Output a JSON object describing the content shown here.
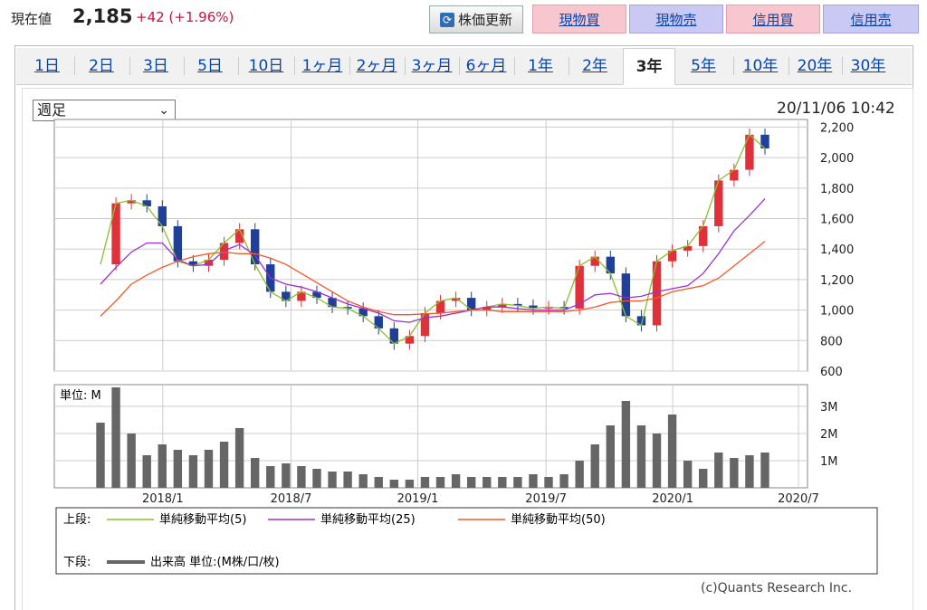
{
  "header": {
    "price_label": "現在値",
    "price_value": "2,185",
    "price_change": "+42 (+1.96%)",
    "refresh_label": "株価更新",
    "trade_buttons": [
      "現物買",
      "現物売",
      "信用買",
      "信用売"
    ]
  },
  "tabs": [
    "1日",
    "2日",
    "3日",
    "5日",
    "10日",
    "1ヶ月",
    "2ヶ月",
    "3ヶ月",
    "6ヶ月",
    "1年",
    "2年",
    "3年",
    "5年",
    "10年",
    "20年",
    "30年"
  ],
  "active_tab": "3年",
  "period_select": "週足",
  "timestamp": "20/11/06 10:42",
  "chart_data": {
    "type": "line",
    "price_axis_ticks": [
      "2,200",
      "2,000",
      "1,800",
      "1,600",
      "1,400",
      "1,200",
      "1,000",
      "800",
      "600"
    ],
    "volume_axis_ticks": [
      "3M",
      "2M",
      "1M"
    ],
    "volume_unit_label": "単位: M",
    "x_tick_labels": [
      "2018/1",
      "2018/7",
      "2019/1",
      "2019/7",
      "2020/1",
      "2020/7"
    ],
    "price_range": [
      600,
      2250
    ],
    "volume_range": [
      0,
      3.8
    ],
    "grid": true,
    "series": [
      {
        "name": "単純移動平均(5)",
        "color": "#8bbf2a",
        "values": [
          1300,
          1700,
          1720,
          1680,
          1550,
          1320,
          1290,
          1330,
          1440,
          1530,
          1300,
          1120,
          1060,
          1120,
          1080,
          1020,
          1010,
          960,
          880,
          780,
          830,
          980,
          1060,
          1080,
          1000,
          1020,
          1040,
          1030,
          1010,
          1020,
          1010,
          1290,
          1350,
          1240,
          960,
          900,
          1320,
          1390,
          1420,
          1550,
          1850,
          1920,
          2150,
          2060
        ]
      },
      {
        "name": "単純移動平均(25)",
        "color": "#9b30d0",
        "values": [
          1170,
          1280,
          1380,
          1440,
          1440,
          1330,
          1290,
          1300,
          1390,
          1430,
          1360,
          1210,
          1170,
          1150,
          1120,
          1080,
          1040,
          1010,
          980,
          930,
          920,
          950,
          960,
          980,
          1000,
          1020,
          1020,
          1010,
          1000,
          1000,
          1000,
          1040,
          1100,
          1110,
          1080,
          1090,
          1120,
          1140,
          1160,
          1240,
          1370,
          1520,
          1620,
          1730
        ]
      },
      {
        "name": "単純移動平均(50)",
        "color": "#f05a28",
        "values": [
          960,
          1060,
          1170,
          1230,
          1280,
          1320,
          1350,
          1370,
          1380,
          1370,
          1370,
          1340,
          1300,
          1240,
          1180,
          1120,
          1060,
          1020,
          990,
          970,
          970,
          975,
          980,
          990,
          1000,
          1000,
          990,
          990,
          990,
          990,
          990,
          1000,
          1020,
          1050,
          1060,
          1060,
          1080,
          1120,
          1140,
          1160,
          1210,
          1290,
          1370,
          1450
        ]
      },
      {
        "name": "出来高",
        "color": "#666666",
        "values": [
          2.4,
          3.7,
          2.0,
          1.2,
          1.6,
          1.4,
          1.2,
          1.4,
          1.7,
          2.2,
          1.1,
          0.8,
          0.9,
          0.8,
          0.7,
          0.6,
          0.6,
          0.5,
          0.4,
          0.3,
          0.3,
          0.4,
          0.4,
          0.5,
          0.4,
          0.4,
          0.4,
          0.4,
          0.5,
          0.4,
          0.5,
          1.0,
          1.6,
          2.3,
          3.2,
          2.3,
          2.0,
          2.7,
          1.0,
          0.7,
          1.3,
          1.1,
          1.2,
          1.3
        ]
      }
    ]
  },
  "legend": {
    "upper_label": "上段:",
    "lower_label": "下段:",
    "items": [
      "単純移動平均(5)",
      "単純移動平均(25)",
      "単純移動平均(50)"
    ],
    "volume_item": "出来高 単位:(M株/口/枚)"
  },
  "copyright": "(c)Quants Research Inc.",
  "colors": {
    "up": "#e0303a",
    "down": "#1f3f99",
    "ma5": "#8bbf2a",
    "ma25": "#9b30d0",
    "ma50": "#f05a28",
    "volume": "#666666"
  }
}
